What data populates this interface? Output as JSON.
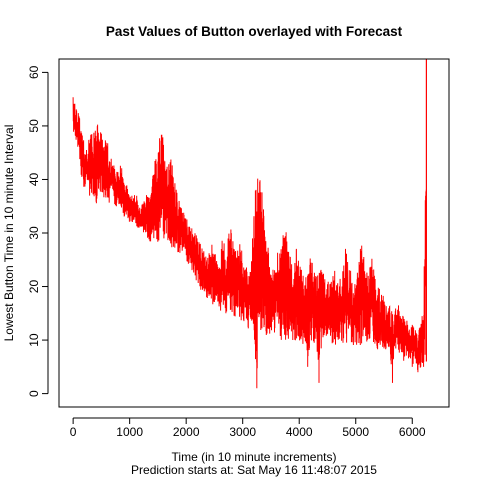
{
  "chart_data": {
    "type": "line",
    "title": "Past Values of Button overlayed with Forecast",
    "xlabel": "Time (in 10 minute increments)",
    "ylabel": "Lowest Button Time in 10 minute Interval",
    "subtitle": "Prediction starts at: Sat May 16 11:48:07 2015",
    "xlim": [
      -250,
      6650
    ],
    "ylim": [
      -2.5,
      62.5
    ],
    "x_ticks": [
      0,
      1000,
      2000,
      3000,
      4000,
      5000,
      6000
    ],
    "y_ticks": [
      0,
      10,
      20,
      30,
      40,
      50,
      60
    ],
    "x_tick_labels": [
      "0",
      "1000",
      "2000",
      "3000",
      "4000",
      "5000",
      "6000"
    ],
    "y_tick_labels": [
      "0",
      "10",
      "20",
      "30",
      "40",
      "50",
      "60"
    ],
    "series_color": "#ff0000",
    "series": [
      {
        "x": [
          0,
          50,
          100,
          150,
          200,
          250,
          300,
          350,
          400,
          450,
          500,
          550,
          600,
          650,
          700,
          750,
          800,
          850,
          900,
          950,
          1000,
          1050,
          1100,
          1150,
          1200,
          1250,
          1300,
          1350,
          1400,
          1450,
          1500,
          1550,
          1600,
          1650,
          1700,
          1750,
          1800,
          1850,
          1900,
          1950,
          2000,
          2050,
          2100,
          2150,
          2200,
          2250,
          2300,
          2350,
          2400,
          2450,
          2500,
          2550,
          2600,
          2650,
          2700,
          2750,
          2800,
          2850,
          2900,
          2950,
          3000,
          3050,
          3100,
          3150,
          3200,
          3250,
          3300,
          3350,
          3400,
          3450,
          3500,
          3550,
          3600,
          3650,
          3700,
          3750,
          3800,
          3850,
          3900,
          3950,
          4000,
          4050,
          4100,
          4150,
          4200,
          4250,
          4300,
          4350,
          4400,
          4450,
          4500,
          4550,
          4600,
          4650,
          4700,
          4750,
          4800,
          4850,
          4900,
          4950,
          5000,
          5050,
          5100,
          5150,
          5200,
          5250,
          5300,
          5350,
          5400,
          5450,
          5500,
          5550,
          5600,
          5650,
          5700,
          5750,
          5800,
          5850,
          5900,
          5950,
          6000,
          6050,
          6100,
          6150,
          6200,
          6250
        ],
        "low": [
          48,
          47,
          44,
          40,
          38,
          39,
          36,
          37,
          35,
          37,
          38,
          36,
          37,
          35,
          36,
          34,
          35,
          34,
          33,
          33,
          32,
          32,
          31,
          31,
          30,
          30,
          29,
          28,
          29,
          29,
          28,
          29,
          29,
          28,
          28,
          27,
          27,
          26,
          26,
          27,
          25,
          24,
          23,
          22,
          20,
          19,
          19,
          18,
          17,
          17,
          16,
          16,
          15,
          16,
          15,
          15,
          14,
          14,
          15,
          14,
          13,
          13,
          12,
          13,
          12,
          1,
          10,
          11,
          11,
          10,
          11,
          10,
          11,
          10,
          10,
          10,
          9,
          10,
          9,
          10,
          10,
          9,
          9,
          5,
          10,
          9,
          10,
          2,
          9,
          10,
          9,
          10,
          9,
          9,
          10,
          8,
          9,
          9,
          10,
          9,
          9,
          9,
          9,
          8,
          9,
          10,
          9,
          9,
          8,
          9,
          7,
          8,
          8,
          2,
          8,
          7,
          8,
          6,
          7,
          6,
          5,
          6,
          4,
          5,
          5,
          6
        ],
        "high": [
          56,
          53,
          54,
          49,
          47,
          45,
          50,
          48,
          50,
          51,
          49,
          47,
          48,
          45,
          44,
          41,
          42,
          43,
          40,
          39,
          37,
          37,
          38,
          36,
          35,
          36,
          38,
          37,
          40,
          44,
          46,
          51,
          47,
          45,
          44,
          45,
          40,
          38,
          35,
          34,
          33,
          32,
          31,
          31,
          29,
          28,
          27,
          26,
          26,
          28,
          27,
          25,
          24,
          31,
          25,
          30,
          31,
          28,
          27,
          29,
          26,
          24,
          23,
          24,
          36,
          42,
          41,
          38,
          30,
          28,
          26,
          25,
          27,
          28,
          30,
          31,
          29,
          26,
          25,
          28,
          24,
          23,
          22,
          23,
          26,
          24,
          22,
          24,
          23,
          22,
          21,
          22,
          24,
          23,
          21,
          22,
          30,
          25,
          24,
          20,
          22,
          23,
          32,
          25,
          23,
          24,
          26,
          22,
          20,
          19,
          18,
          16,
          17,
          15,
          16,
          17,
          14,
          15,
          14,
          12,
          13,
          12,
          11,
          14,
          16,
          62
        ]
      }
    ]
  }
}
